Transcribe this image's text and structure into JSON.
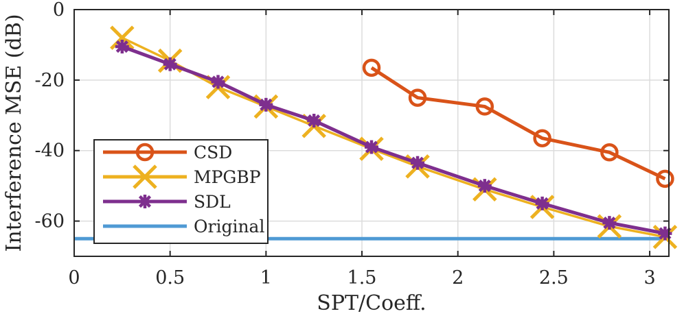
{
  "chart_data": {
    "type": "line",
    "title": "",
    "xlabel": "SPT/Coeff.",
    "ylabel": "Interference MSE (dB)",
    "xlim": [
      0,
      3.1
    ],
    "ylim": [
      -70,
      0
    ],
    "xticks": [
      0,
      0.5,
      1,
      1.5,
      2,
      2.5,
      3
    ],
    "xtick_labels": [
      "0",
      "0.5",
      "1",
      "1.5",
      "2",
      "2.5",
      "3"
    ],
    "yticks": [
      0,
      -20,
      -40,
      -60
    ],
    "ytick_labels": [
      "0",
      "-20",
      "-40",
      "-60"
    ],
    "grid": true,
    "legend_location": "bottom-left",
    "series": [
      {
        "name": "CSD",
        "color": "#D95319",
        "marker": "circle",
        "x": [
          1.55,
          1.79,
          2.14,
          2.44,
          2.79,
          3.08
        ],
        "y": [
          -16.5,
          -25,
          -27.5,
          -36.5,
          -40.5,
          -48
        ]
      },
      {
        "name": "MPGBP",
        "color": "#EDB120",
        "marker": "x",
        "x": [
          0.25,
          0.5,
          0.75,
          1.0,
          1.25,
          1.55,
          1.79,
          2.14,
          2.44,
          2.79,
          3.08
        ],
        "y": [
          -8,
          -14.5,
          -22,
          -27.5,
          -33,
          -39.5,
          -44.5,
          -51,
          -56,
          -61.5,
          -64.5
        ]
      },
      {
        "name": "SDL",
        "color": "#7E2F8E",
        "marker": "asterisk",
        "x": [
          0.25,
          0.5,
          0.75,
          1.0,
          1.25,
          1.55,
          1.79,
          2.14,
          2.44,
          2.79,
          3.08
        ],
        "y": [
          -10.5,
          -15.5,
          -20.5,
          -27,
          -31.5,
          -39,
          -43.5,
          -50,
          -55,
          -60.5,
          -63.5
        ]
      },
      {
        "name": "Original",
        "color": "#4F9AD4",
        "marker": "none",
        "x": [
          0,
          3.1
        ],
        "y": [
          -65,
          -65
        ]
      }
    ]
  }
}
